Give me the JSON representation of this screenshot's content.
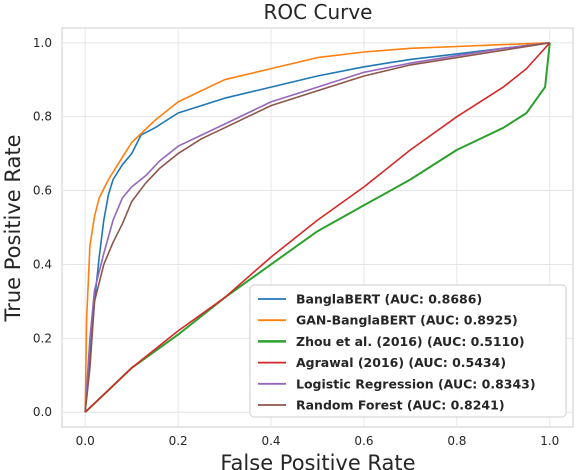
{
  "chart_data": {
    "type": "line",
    "title": "ROC Curve",
    "xlabel": "False Positive Rate",
    "ylabel": "True Positive Rate",
    "xlim": [
      -0.05,
      1.05
    ],
    "ylim": [
      -0.04,
      1.04
    ],
    "xticks": [
      "0.0",
      "0.2",
      "0.4",
      "0.6",
      "0.8",
      "1.0"
    ],
    "yticks": [
      "0.0",
      "0.2",
      "0.4",
      "0.6",
      "0.8",
      "1.0"
    ],
    "grid": true,
    "legend_position": "lower-right",
    "series": [
      {
        "name": "BanglaBERT (AUC: 0.8686)",
        "color": "#1f77b4",
        "x": [
          0,
          0.002,
          0.01,
          0.02,
          0.03,
          0.04,
          0.05,
          0.06,
          0.08,
          0.1,
          0.12,
          0.15,
          0.2,
          0.25,
          0.3,
          0.4,
          0.5,
          0.6,
          0.7,
          0.8,
          0.9,
          1.0
        ],
        "y": [
          0,
          0.05,
          0.15,
          0.3,
          0.42,
          0.52,
          0.59,
          0.63,
          0.67,
          0.7,
          0.75,
          0.77,
          0.81,
          0.83,
          0.85,
          0.88,
          0.91,
          0.935,
          0.955,
          0.97,
          0.985,
          1.0
        ]
      },
      {
        "name": "GAN-BanglaBERT (AUC: 0.8925)",
        "color": "#ff7f0e",
        "x": [
          0,
          0.003,
          0.01,
          0.02,
          0.03,
          0.05,
          0.07,
          0.1,
          0.15,
          0.2,
          0.3,
          0.4,
          0.5,
          0.6,
          0.7,
          0.8,
          0.9,
          1.0
        ],
        "y": [
          0,
          0.25,
          0.45,
          0.53,
          0.58,
          0.63,
          0.67,
          0.73,
          0.79,
          0.84,
          0.9,
          0.93,
          0.96,
          0.975,
          0.985,
          0.99,
          0.995,
          1.0
        ]
      },
      {
        "name": "Zhou et al. (2016) (AUC: 0.5110)",
        "color": "#2ca02c",
        "x": [
          0,
          0.05,
          0.1,
          0.2,
          0.3,
          0.4,
          0.5,
          0.6,
          0.7,
          0.8,
          0.9,
          0.95,
          0.99,
          1.0
        ],
        "y": [
          0,
          0.06,
          0.12,
          0.21,
          0.31,
          0.4,
          0.49,
          0.56,
          0.63,
          0.71,
          0.77,
          0.81,
          0.88,
          1.0
        ]
      },
      {
        "name": "Agrawal (2016) (AUC: 0.5434)",
        "color": "#d62728",
        "x": [
          0,
          0.05,
          0.1,
          0.2,
          0.3,
          0.4,
          0.5,
          0.6,
          0.7,
          0.8,
          0.9,
          0.95,
          1.0
        ],
        "y": [
          0,
          0.06,
          0.12,
          0.22,
          0.31,
          0.42,
          0.52,
          0.61,
          0.71,
          0.8,
          0.88,
          0.93,
          1.0
        ]
      },
      {
        "name": "Logistic Regression (AUC: 0.8343)",
        "color": "#9467bd",
        "x": [
          0,
          0.01,
          0.02,
          0.04,
          0.06,
          0.08,
          0.1,
          0.13,
          0.16,
          0.2,
          0.25,
          0.3,
          0.4,
          0.5,
          0.6,
          0.7,
          0.8,
          0.9,
          1.0
        ],
        "y": [
          0,
          0.2,
          0.33,
          0.43,
          0.52,
          0.58,
          0.61,
          0.64,
          0.68,
          0.72,
          0.75,
          0.78,
          0.84,
          0.88,
          0.92,
          0.945,
          0.965,
          0.985,
          1.0
        ]
      },
      {
        "name": "Random Forest (AUC: 0.8241)",
        "color": "#8c564b",
        "x": [
          0,
          0.01,
          0.02,
          0.04,
          0.06,
          0.08,
          0.1,
          0.13,
          0.16,
          0.2,
          0.25,
          0.3,
          0.4,
          0.5,
          0.6,
          0.7,
          0.8,
          0.9,
          1.0
        ],
        "y": [
          0,
          0.12,
          0.3,
          0.4,
          0.46,
          0.51,
          0.57,
          0.62,
          0.66,
          0.7,
          0.74,
          0.77,
          0.83,
          0.87,
          0.91,
          0.94,
          0.96,
          0.98,
          1.0
        ]
      }
    ]
  }
}
